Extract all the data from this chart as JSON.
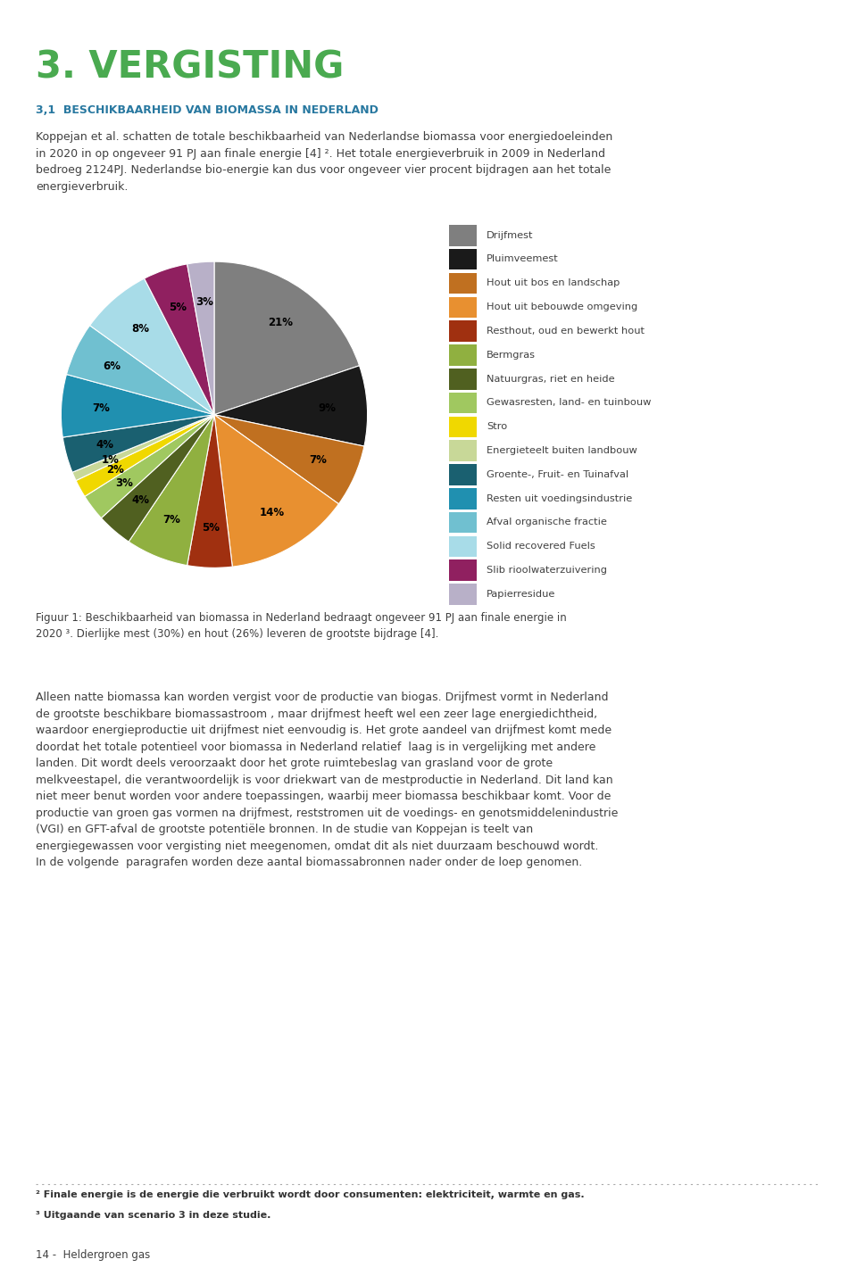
{
  "title": "3. VERGISTING",
  "subtitle": "3,1  BESCHIKBAARHEID VAN BIOMASSA IN NEDERLAND",
  "body_text": "Koppejan et al. schatten de totale beschikbaarheid van Nederlandse biomassa voor energiedoeleinden\nin 2020 in op ongeveer 91 PJ aan finale energie [4] ². Het totale energieverbruik in 2009 in Nederland\nbedroeg 2124PJ. Nederlandse bio-energie kan dus voor ongeveer vier procent bijdragen aan het totale\nenergieverbruik.",
  "values": [
    21,
    9,
    7,
    14,
    5,
    7,
    4,
    3,
    2,
    1,
    4,
    7,
    6,
    8,
    5,
    3
  ],
  "colors": [
    "#7f7f7f",
    "#1a1a1a",
    "#c07020",
    "#e89030",
    "#a03010",
    "#90b040",
    "#506020",
    "#a0c860",
    "#f0d800",
    "#c8d898",
    "#1a6070",
    "#2090b0",
    "#70c0d0",
    "#a8dce8",
    "#902060",
    "#b8b0c8"
  ],
  "pct_labels": [
    "21%",
    "9%",
    "7%",
    "14%",
    "5%",
    "7%",
    "4%",
    "3%",
    "2%",
    "1%",
    "4%",
    "7%",
    "6%",
    "8%",
    "5%",
    "3%"
  ],
  "legend_labels": [
    "Drijfmest",
    "Pluimveemest",
    "Hout uit bos en landschap",
    "Hout uit bebouwde omgeving",
    "Resthout, oud en bewerkt hout",
    "Bermgras",
    "Natuurgras, riet en heide",
    "Gewasresten, land- en tuinbouw",
    "Stro",
    "Energieteelt buiten landbouw",
    "Groente-, Fruit- en Tuinafval",
    "Resten uit voedingsindustrie",
    "Afval organische fractie",
    "Solid recovered Fuels",
    "Slib rioolwaterzuivering",
    "Papierresidue"
  ],
  "figuur_caption": "Figuur 1: Beschikbaarheid van biomassa in Nederland bedraagt ongeveer 91 PJ aan finale energie in\n2020 ³. Dierlijke mest (30%) en hout (26%) leveren de grootste bijdrage [4].",
  "body_text2": "Alleen natte biomassa kan worden vergist voor de productie van biogas. Drijfmest vormt in Nederland\nde grootste beschikbare biomassastroom , maar drijfmest heeft wel een zeer lage energiedichtheid,\nwaardoor energieproductie uit drijfmest niet eenvoudig is. Het grote aandeel van drijfmest komt mede\ndoordat het totale potentieel voor biomassa in Nederland relatief  laag is in vergelijking met andere\nlanden. Dit wordt deels veroorzaakt door het grote ruimtebeslag van grasland voor de grote\nmelkveestapel, die verantwoordelijk is voor driekwart van de mestproductie in Nederland. Dit land kan\nniet meer benut worden voor andere toepassingen, waarbij meer biomassa beschikbaar komt. Voor de\nproductie van groen gas vormen na drijfmest, reststromen uit de voedings- en genotsmiddelenindustrie\n(VGI) en GFT-afval de grootste potentiële bronnen. In de studie van Koppejan is teelt van\nenergiegewassen voor vergisting niet meegenomen, omdat dit als niet duurzaam beschouwd wordt.\nIn de volgende  paragrafen worden deze aantal biomassabronnen nader onder de loep genomen.",
  "footnote1": "² Finale energie is de energie die verbruikt wordt door consumenten: elektriciteit, warmte en gas.",
  "footnote2": "³ Uitgaande van scenario 3 in deze studie.",
  "footer": "14 -  Heldergroen gas",
  "bg_color": "#ffffff",
  "title_color": "#4aaa50",
  "subtitle_color": "#2878a0"
}
